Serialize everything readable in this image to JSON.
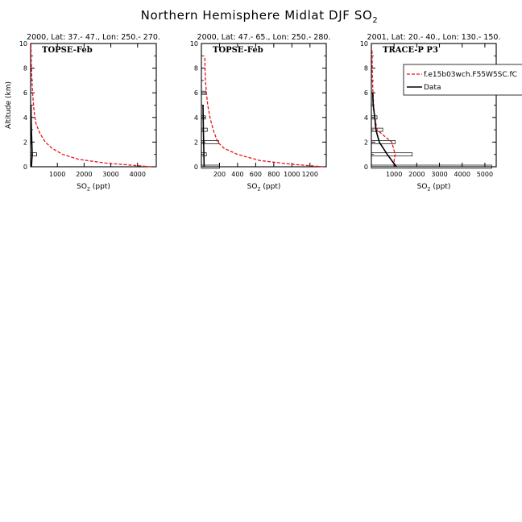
{
  "figure": {
    "title_main": "Northern Hemisphere Midlat DJF SO",
    "title_sub": "2"
  },
  "colors": {
    "model": "#e8141c",
    "data": "#000000",
    "axis": "#000000"
  },
  "legend": {
    "model_label": "f.e15b03wch.F55W5SC.fC",
    "data_label": "Data",
    "placement": "top-right of panel 3"
  },
  "chart_data": [
    {
      "type": "line",
      "title": "2000, Lat: 37.- 47., Lon: 250.- 270.",
      "campaign": "TOPSE-Feb",
      "xlabel_main": "SO",
      "xlabel_sub": "2",
      "xlabel_unit": " (ppt)",
      "ylabel": "Altitude (km)",
      "xlim": [
        0,
        4700
      ],
      "ylim": [
        0,
        10
      ],
      "xticks": [
        1000,
        2000,
        3000,
        4000
      ],
      "yticks": [
        0,
        2,
        4,
        6,
        8,
        10
      ],
      "series": [
        {
          "name": "f.e15b03wch.F55W5SC.fC",
          "style": "dashed",
          "color": "#e8141c",
          "x": [
            4500,
            2800,
            1800,
            1200,
            800,
            550,
            350,
            200,
            130,
            90,
            60,
            40,
            25,
            18,
            15,
            13
          ],
          "y": [
            0.0,
            0.3,
            0.6,
            1.0,
            1.5,
            2.0,
            2.7,
            3.5,
            4.5,
            5.5,
            6.5,
            7.5,
            8.5,
            9.2,
            9.7,
            10.0
          ]
        },
        {
          "name": "Data",
          "style": "solid",
          "color": "#000000",
          "x": [
            30,
            60,
            45,
            30,
            20,
            15
          ],
          "y": [
            0.0,
            1.0,
            2.0,
            3.0,
            4.0,
            5.0
          ]
        }
      ],
      "bars": [
        {
          "y": 1.0,
          "left": 0,
          "right": 230
        },
        {
          "y": 2.0,
          "left": 0,
          "right": 25
        },
        {
          "y": 3.0,
          "left": 0,
          "right": 20
        }
      ]
    },
    {
      "type": "line",
      "title": "2000, Lat: 47.- 65., Lon: 250.- 280.",
      "campaign": "TOPSE-Feb",
      "xlabel_main": "SO",
      "xlabel_sub": "2",
      "xlabel_unit": " (ppt)",
      "xlim": [
        0,
        1380
      ],
      "ylim": [
        0,
        10
      ],
      "xticks": [
        200,
        400,
        600,
        800,
        1000,
        1200
      ],
      "yticks": [
        0,
        2,
        4,
        6,
        8,
        10
      ],
      "series": [
        {
          "name": "f.e15b03wch.F55W5SC.fC",
          "style": "dashed",
          "color": "#e8141c",
          "x": [
            1350,
            1000,
            650,
            400,
            250,
            180,
            130,
            95,
            70,
            55,
            45,
            40,
            38
          ],
          "y": [
            0.0,
            0.2,
            0.5,
            1.0,
            1.5,
            2.0,
            3.0,
            4.0,
            5.0,
            6.0,
            7.0,
            8.0,
            9.0
          ]
        },
        {
          "name": "Data",
          "style": "solid",
          "color": "#000000",
          "x": [
            30,
            28,
            25,
            22,
            20,
            18
          ],
          "y": [
            0.0,
            1.0,
            2.0,
            3.0,
            4.0,
            5.0
          ]
        }
      ],
      "bars": [
        {
          "y": 0.0,
          "left": 0,
          "right": 200
        },
        {
          "y": 1.0,
          "left": 0,
          "right": 55
        },
        {
          "y": 2.0,
          "left": 0,
          "right": 190
        },
        {
          "y": 3.0,
          "left": 0,
          "right": 65
        },
        {
          "y": 4.0,
          "left": 0,
          "right": 45
        },
        {
          "y": 6.0,
          "left": 0,
          "right": 50
        }
      ]
    },
    {
      "type": "line",
      "title": "2001, Lat: 20.- 40., Lon: 130.- 150.",
      "campaign": "TRACE-P P3",
      "xlabel_main": "SO",
      "xlabel_sub": "2",
      "xlabel_unit": " (ppt)",
      "xlim": [
        0,
        5500
      ],
      "ylim": [
        0,
        10
      ],
      "xticks": [
        1000,
        2000,
        3000,
        4000,
        5000
      ],
      "yticks": [
        0,
        2,
        4,
        6,
        8,
        10
      ],
      "series": [
        {
          "name": "f.e15b03wch.F55W5SC.fC",
          "style": "dashed",
          "color": "#e8141c",
          "x": [
            1050,
            1000,
            1050,
            900,
            500,
            250,
            150,
            100,
            70,
            50,
            40,
            30
          ],
          "y": [
            0.0,
            0.5,
            1.0,
            2.0,
            2.6,
            3.0,
            4.0,
            5.0,
            6.0,
            7.0,
            8.0,
            9.5
          ]
        },
        {
          "name": "Data",
          "style": "solid",
          "color": "#000000",
          "x": [
            1100,
            700,
            350,
            200,
            150,
            80,
            60
          ],
          "y": [
            0.0,
            1.0,
            2.0,
            3.0,
            4.0,
            5.0,
            6.0
          ]
        }
      ],
      "bars": [
        {
          "y": 0.0,
          "left": 0,
          "right": 5300
        },
        {
          "y": 1.0,
          "left": 0,
          "right": 1800
        },
        {
          "y": 2.0,
          "left": 0,
          "right": 1050
        },
        {
          "y": 3.0,
          "left": 0,
          "right": 500
        },
        {
          "y": 4.0,
          "left": 0,
          "right": 250
        }
      ]
    }
  ]
}
